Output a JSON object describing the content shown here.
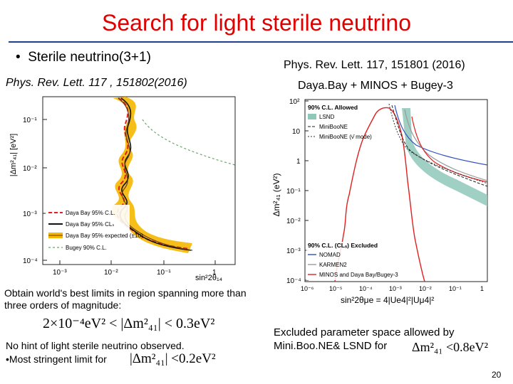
{
  "slide": {
    "title": "Search for light sterile neutrino",
    "bullet": "Sterile neutrino(3+1)",
    "ref_left": "Phys. Rev. Lett. 117 , 151802(2016)",
    "ref_right": "Phys. Rev. Lett. 117, 151801 (2016)",
    "subtitle_right": "Daya.Bay + MINOS + Bugey-3",
    "caption": "Obtain world's best limits in region spanning more than three orders of magnitude:",
    "formula1": "2×10⁻⁴eV² < |Δm²₄₁| < 0.3eV²",
    "nohint": "No hint of light sterile neutrino observed.",
    "stringent": "•Most stringent limit for",
    "formula2": "|Δm²₄₁| <0.2eV²",
    "excluded": "Excluded parameter space allowed by",
    "excluded2": "Mini.Boo.NE& LSND for",
    "formula3": "Δm²₄₁ <0.8eV²",
    "page_number": "20"
  },
  "left_plot": {
    "ylabel": "|Δm²₄₁| [eV²]",
    "xlabel": "sin²2θ₁₄",
    "yticks": [
      "10⁻¹",
      "10⁻²",
      "10⁻³",
      "10⁻⁴"
    ],
    "xticks": [
      "10⁻³",
      "10⁻²",
      "10⁻¹",
      "1"
    ],
    "legend": [
      "Daya Bay 95% C.L.",
      "Daya Bay 95% CLₛ",
      "Daya Bay 95% expected (±1σ)",
      "Bugey 90% C.L."
    ],
    "colors": {
      "red": "#e02020",
      "black": "#111111",
      "band": "#f5b700",
      "bugey": "#6aa86a"
    }
  },
  "right_plot": {
    "ylabel": "Δm²₄₁ (eV²)",
    "xlabel": "sin²2θμe = 4|Ue4|²|Uμ4|²",
    "yticks": [
      "10²",
      "10",
      "1",
      "10⁻¹",
      "10⁻²",
      "10⁻³",
      "10⁻⁴"
    ],
    "xticks": [
      "10⁻⁶",
      "10⁻⁵",
      "10⁻⁴",
      "10⁻³",
      "10⁻²",
      "10⁻¹",
      "1"
    ],
    "legend_allowed_title": "90% C.L. Allowed",
    "legend_allowed": [
      "LSND",
      "MiniBooNE",
      "MiniBooNE (ν̄ mode)"
    ],
    "legend_excluded_title": "90% C.L. (CLₛ) Excluded",
    "legend_excluded": [
      "NOMAD",
      "KARMEN2",
      "MINOS and Daya Bay/Bugey-3"
    ],
    "colors": {
      "excluded": "#e02020",
      "lsnd": "#8fc8b8",
      "nomad": "#3050c0",
      "karmen": "#999999"
    }
  }
}
